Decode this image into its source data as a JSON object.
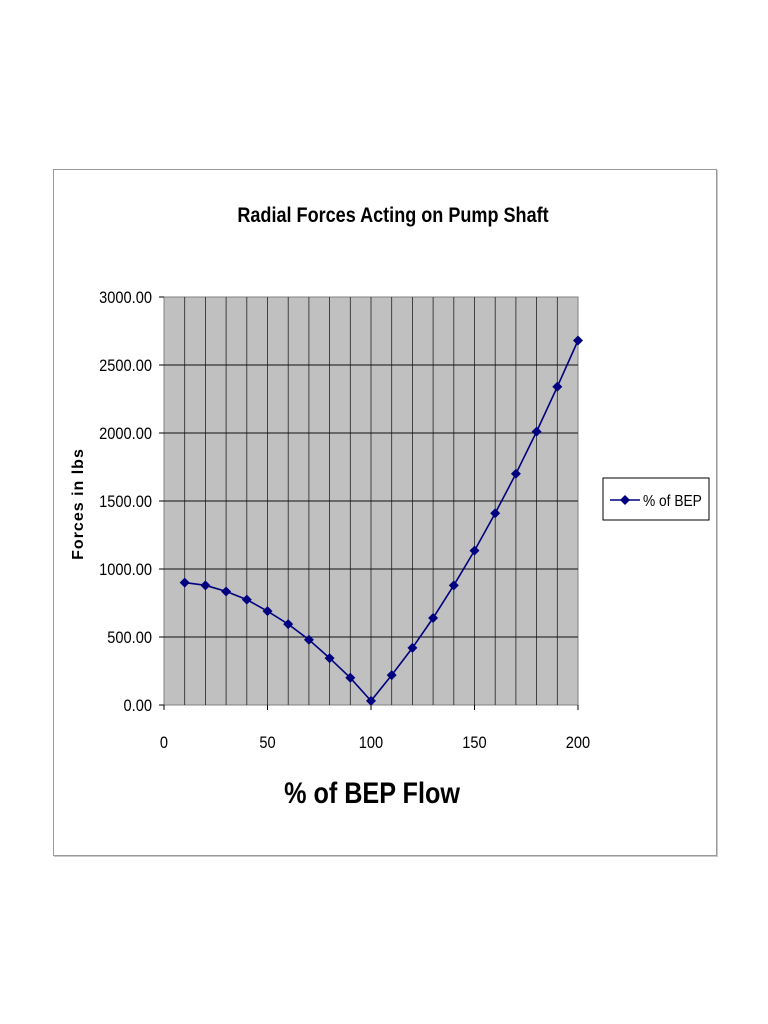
{
  "chart_data": {
    "type": "line",
    "title": "Radial Forces Acting on Pump Shaft",
    "xlabel": "% of BEP Flow",
    "ylabel": "Forces in lbs",
    "xlim": [
      0,
      200
    ],
    "ylim": [
      0,
      3000
    ],
    "x_ticks": [
      "0",
      "50",
      "100",
      "150",
      "200"
    ],
    "y_ticks": [
      "0.00",
      "500.00",
      "1000.00",
      "1500.00",
      "2000.00",
      "2500.00",
      "3000.00"
    ],
    "grid": true,
    "legend_position": "right",
    "series": [
      {
        "name": "% of BEP",
        "color": "#000080",
        "marker": "diamond",
        "x": [
          10,
          20,
          30,
          40,
          50,
          60,
          70,
          80,
          90,
          100,
          110,
          120,
          130,
          140,
          150,
          160,
          170,
          180,
          190,
          200
        ],
        "y": [
          900,
          880,
          835,
          775,
          690,
          595,
          480,
          345,
          200,
          30,
          220,
          420,
          640,
          880,
          1135,
          1410,
          1700,
          2010,
          2340,
          2680
        ]
      }
    ],
    "colors": {
      "plot_background": "#c0c0c0",
      "grid": "#000000",
      "series": "#000080"
    }
  }
}
